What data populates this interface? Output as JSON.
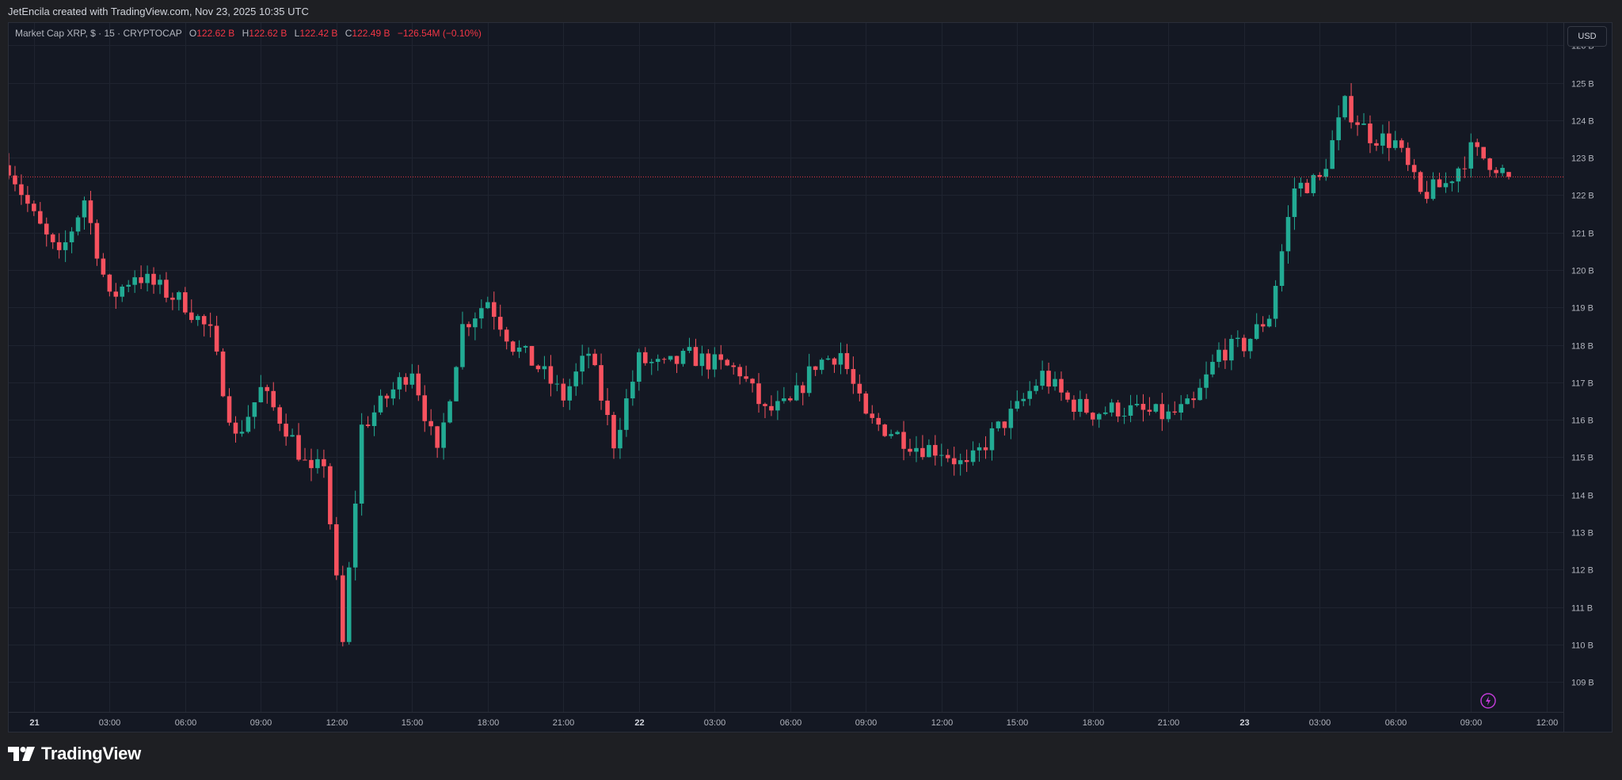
{
  "header": {
    "attribution": "JetEncila created with TradingView.com, Nov 23, 2025 10:35 UTC"
  },
  "legend": {
    "symbol": "Market Cap XRP, $ · 15 · CRYPTOCAP",
    "open_label": "O",
    "open": "122.62 B",
    "high_label": "H",
    "high": "122.62 B",
    "low_label": "L",
    "low": "122.42 B",
    "close_label": "C",
    "close": "122.49 B",
    "change": "−126.54M (−0.10%)"
  },
  "currency": "USD",
  "footer": {
    "brand": "TradingView",
    "logo_icon": "tradingview-logo-icon"
  },
  "colors": {
    "up": "#22ab94",
    "down": "#f7525f",
    "background": "#141823",
    "grid": "#1f2430",
    "price_line": "#f23645",
    "axis_text": "#b2b5be"
  },
  "chart_data": {
    "type": "candlestick",
    "title": "Market Cap XRP, $ · 15 · CRYPTOCAP",
    "unit": "B",
    "y_axis": {
      "side": "right",
      "ticks": [
        109,
        110,
        111,
        112,
        113,
        114,
        115,
        116,
        117,
        118,
        119,
        120,
        121,
        122,
        123,
        124,
        125,
        126
      ],
      "tick_labels": [
        "109 B",
        "110 B",
        "111 B",
        "112 B",
        "113 B",
        "114 B",
        "115 B",
        "116 B",
        "117 B",
        "118 B",
        "119 B",
        "120 B",
        "121 B",
        "122 B",
        "123 B",
        "124 B",
        "125 B",
        "126 B"
      ],
      "ylim": [
        108.2,
        126.6
      ]
    },
    "x_axis": {
      "ticks": [
        "21",
        "03:00",
        "06:00",
        "09:00",
        "12:00",
        "15:00",
        "18:00",
        "21:00",
        "22",
        "03:00",
        "06:00",
        "09:00",
        "12:00",
        "15:00",
        "18:00",
        "21:00",
        "23",
        "03:00",
        "06:00",
        "09:00",
        "12:00"
      ],
      "bold_ticks": [
        "21",
        "22",
        "23"
      ],
      "start": "2025-11-20T23:00",
      "end": "2025-11-23T12:40",
      "candle_interval_minutes": 15
    },
    "grid": true,
    "last_price": 122.49,
    "last_price_label": "122.49 B",
    "events_icon": "lightning-icon",
    "series": [
      {
        "type": "ohlc_path",
        "points": [
          {
            "time": "2025-11-20T23:00",
            "price": 122.8
          },
          {
            "time": "2025-11-21T00:00",
            "price": 121.4
          },
          {
            "time": "2025-11-21T01:00",
            "price": 120.3
          },
          {
            "time": "2025-11-21T02:00",
            "price": 121.9
          },
          {
            "time": "2025-11-21T03:00",
            "price": 119.2
          },
          {
            "time": "2025-11-21T04:00",
            "price": 119.9
          },
          {
            "time": "2025-11-21T05:00",
            "price": 119.5
          },
          {
            "time": "2025-11-21T06:00",
            "price": 119.1
          },
          {
            "time": "2025-11-21T07:00",
            "price": 118.3
          },
          {
            "time": "2025-11-21T08:00",
            "price": 115.5
          },
          {
            "time": "2025-11-21T09:00",
            "price": 116.8
          },
          {
            "time": "2025-11-21T10:00",
            "price": 115.8
          },
          {
            "time": "2025-11-21T11:00",
            "price": 114.5
          },
          {
            "time": "2025-11-21T11:30",
            "price": 114.9
          },
          {
            "time": "2025-11-21T12:15",
            "price": 110.0
          },
          {
            "time": "2025-11-21T13:00",
            "price": 115.8
          },
          {
            "time": "2025-11-21T14:00",
            "price": 116.6
          },
          {
            "time": "2025-11-21T15:00",
            "price": 117.4
          },
          {
            "time": "2025-11-21T16:00",
            "price": 115.0
          },
          {
            "time": "2025-11-21T17:00",
            "price": 118.5
          },
          {
            "time": "2025-11-21T18:00",
            "price": 119.2
          },
          {
            "time": "2025-11-21T19:00",
            "price": 118.0
          },
          {
            "time": "2025-11-21T20:00",
            "price": 117.4
          },
          {
            "time": "2025-11-21T21:00",
            "price": 116.6
          },
          {
            "time": "2025-11-21T22:00",
            "price": 117.8
          },
          {
            "time": "2025-11-21T23:00",
            "price": 115.4
          },
          {
            "time": "2025-11-22T00:00",
            "price": 117.6
          },
          {
            "time": "2025-11-22T01:00",
            "price": 117.4
          },
          {
            "time": "2025-11-22T02:00",
            "price": 117.7
          },
          {
            "time": "2025-11-22T03:00",
            "price": 117.5
          },
          {
            "time": "2025-11-22T04:00",
            "price": 117.3
          },
          {
            "time": "2025-11-22T05:00",
            "price": 116.2
          },
          {
            "time": "2025-11-22T06:00",
            "price": 116.4
          },
          {
            "time": "2025-11-22T07:00",
            "price": 117.5
          },
          {
            "time": "2025-11-22T08:00",
            "price": 117.8
          },
          {
            "time": "2025-11-22T09:00",
            "price": 116.0
          },
          {
            "time": "2025-11-22T10:00",
            "price": 115.7
          },
          {
            "time": "2025-11-22T11:00",
            "price": 115.3
          },
          {
            "time": "2025-11-22T12:00",
            "price": 115.2
          },
          {
            "time": "2025-11-22T13:00",
            "price": 114.7
          },
          {
            "time": "2025-11-22T14:00",
            "price": 115.6
          },
          {
            "time": "2025-11-22T15:00",
            "price": 116.3
          },
          {
            "time": "2025-11-22T16:00",
            "price": 117.2
          },
          {
            "time": "2025-11-22T17:00",
            "price": 116.5
          },
          {
            "time": "2025-11-22T18:00",
            "price": 116.2
          },
          {
            "time": "2025-11-22T19:00",
            "price": 116.3
          },
          {
            "time": "2025-11-22T20:00",
            "price": 116.2
          },
          {
            "time": "2025-11-22T21:00",
            "price": 116.1
          },
          {
            "time": "2025-11-22T22:00",
            "price": 116.4
          },
          {
            "time": "2025-11-22T23:00",
            "price": 117.8
          },
          {
            "time": "2025-11-23T00:00",
            "price": 118.0
          },
          {
            "time": "2025-11-23T01:00",
            "price": 118.8
          },
          {
            "time": "2025-11-23T02:00",
            "price": 122.2
          },
          {
            "time": "2025-11-23T03:00",
            "price": 122.4
          },
          {
            "time": "2025-11-23T04:00",
            "price": 124.4
          },
          {
            "time": "2025-11-23T05:00",
            "price": 123.6
          },
          {
            "time": "2025-11-23T06:00",
            "price": 123.4
          },
          {
            "time": "2025-11-23T07:00",
            "price": 122.0
          },
          {
            "time": "2025-11-23T08:00",
            "price": 122.3
          },
          {
            "time": "2025-11-23T09:00",
            "price": 123.2
          },
          {
            "time": "2025-11-23T10:00",
            "price": 122.8
          },
          {
            "time": "2025-11-23T10:30",
            "price": 122.49
          }
        ]
      }
    ]
  }
}
